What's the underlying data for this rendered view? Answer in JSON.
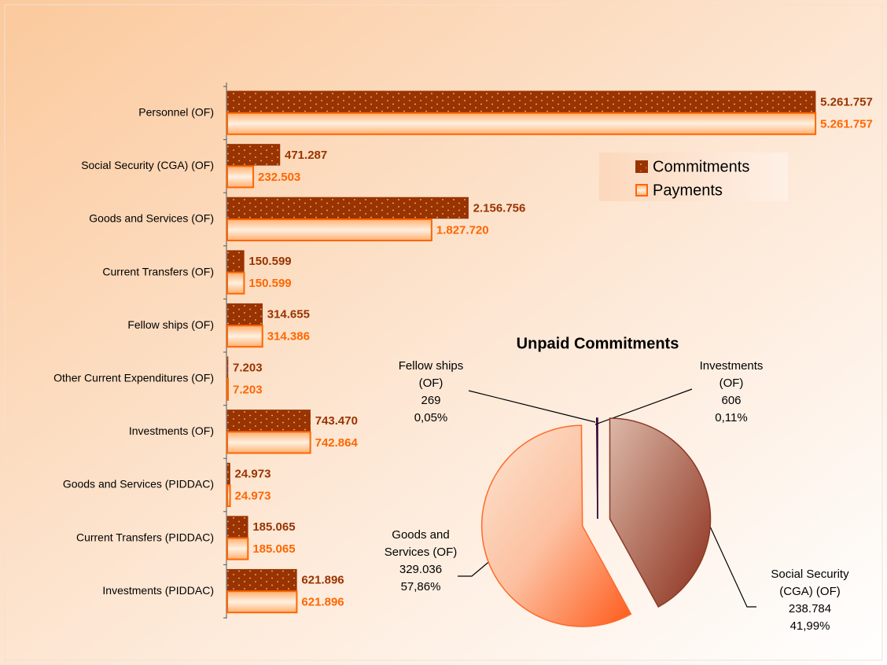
{
  "chart_data": [
    {
      "type": "bar",
      "orientation": "horizontal",
      "categories": [
        "Personnel (OF)",
        "Social Security (CGA) (OF)",
        "Goods and Services (OF)",
        "Current Transfers (OF)",
        "Fellow ships (OF)",
        "Other Current Expenditures (OF)",
        "Investments (OF)",
        "Goods and Services (PIDDAC)",
        "Current Transfers (PIDDAC)",
        "Investments (PIDDAC)"
      ],
      "series": [
        {
          "name": "Commitments",
          "color": "#993300",
          "values": [
            5261757,
            471287,
            2156756,
            150599,
            314655,
            7203,
            743470,
            24973,
            185065,
            621896
          ],
          "value_labels": [
            "5.261.757",
            "471.287",
            "2.156.756",
            "150.599",
            "314.655",
            "7.203",
            "743.470",
            "24.973",
            "185.065",
            "621.896"
          ]
        },
        {
          "name": "Payments",
          "color": "#ff6600",
          "values": [
            5261757,
            232503,
            1827720,
            150599,
            314386,
            7203,
            742864,
            24973,
            185065,
            621896
          ],
          "value_labels": [
            "5.261.757",
            "232.503",
            "1.827.720",
            "150.599",
            "314.386",
            "7.203",
            "742.864",
            "24.973",
            "185.065",
            "621.896"
          ]
        }
      ],
      "xlim": [
        0,
        5500000
      ],
      "legend": "upper right"
    },
    {
      "type": "pie",
      "title": "Unpaid Commitments",
      "categories": [
        "Social Security (CGA) (OF)",
        "Goods and Services (OF)",
        "Fellow ships (OF)",
        "Investments (OF)"
      ],
      "values": [
        238784,
        329036,
        269,
        606
      ],
      "value_labels": [
        "238.784",
        "329.036",
        "269",
        "606"
      ],
      "percentages": [
        41.99,
        57.86,
        0.05,
        0.11
      ],
      "percentage_labels": [
        "41,99%",
        "57,86%",
        "0,05%",
        "0,11%"
      ],
      "colors": [
        "#a8553a",
        "#ff7a3a",
        "#330033",
        "#330033"
      ]
    }
  ]
}
